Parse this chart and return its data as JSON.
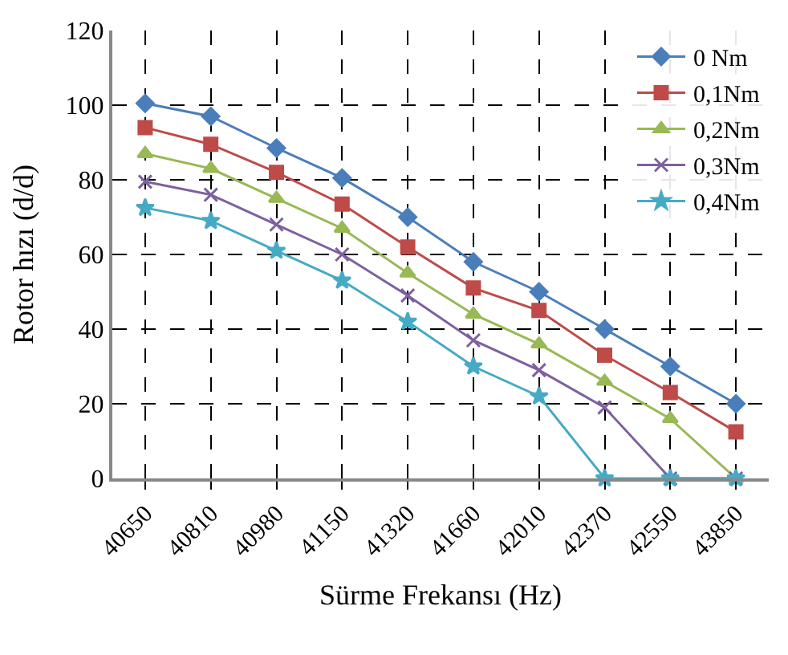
{
  "chart_data": {
    "type": "line",
    "xlabel": "Sürme Frekansı (Hz)",
    "ylabel": "Rotor hızı (d/d)",
    "categories": [
      "40650",
      "40810",
      "40980",
      "41150",
      "41320",
      "41660",
      "42010",
      "42370",
      "42550",
      "43850"
    ],
    "series": [
      {
        "name": "0 Nm",
        "color": "#4a7ebb",
        "marker": "diamond",
        "values": [
          100.5,
          97,
          88.5,
          80.5,
          70,
          58,
          50,
          40,
          30,
          20
        ]
      },
      {
        "name": "0,1Nm",
        "color": "#be4b48",
        "marker": "square",
        "values": [
          94,
          89.5,
          82,
          73.5,
          62,
          51,
          45,
          33,
          23,
          12.5
        ]
      },
      {
        "name": "0,2Nm",
        "color": "#98b954",
        "marker": "triangle",
        "values": [
          87,
          83,
          75,
          67,
          55,
          44,
          36,
          26,
          16,
          0
        ]
      },
      {
        "name": "0,3Nm",
        "color": "#7d60a0",
        "marker": "cross",
        "values": [
          79.5,
          76,
          68,
          60,
          49,
          37,
          29,
          19,
          0,
          0
        ]
      },
      {
        "name": "0,4Nm",
        "color": "#46aac5",
        "marker": "star",
        "values": [
          72.5,
          69,
          61,
          53,
          42,
          30,
          22,
          0,
          0,
          0
        ]
      }
    ],
    "ylim": [
      0,
      120
    ],
    "yticks": [
      0,
      20,
      40,
      60,
      80,
      100,
      120
    ],
    "grid": true,
    "legend": "top right",
    "line_style": "solid"
  }
}
